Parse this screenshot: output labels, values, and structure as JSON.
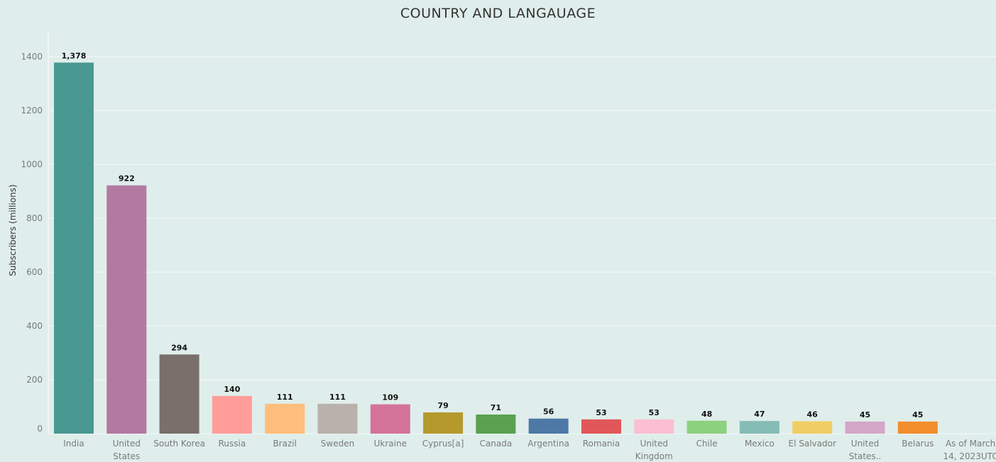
{
  "chart_data": {
    "type": "bar",
    "title": "COUNTRY  AND LANGAUAGE",
    "ylabel": "Subscribers (millions)",
    "xlabel": "",
    "ylim": [
      0,
      1400
    ],
    "yticks": [
      0,
      200,
      400,
      600,
      800,
      1000,
      1200,
      1400
    ],
    "grid": true,
    "categories": [
      "India",
      "United States",
      "South Korea",
      "Russia",
      "Brazil",
      "Sweden",
      "Ukraine",
      "Cyprus[a]",
      "Canada",
      "Argentina",
      "Romania",
      "United Kingdom",
      "Chile",
      "Mexico",
      "El Salvador",
      "United States..",
      "Belarus",
      "As of March 14, 2023UTC"
    ],
    "category_lines": [
      [
        "India"
      ],
      [
        "United",
        "States"
      ],
      [
        "South Korea"
      ],
      [
        "Russia"
      ],
      [
        "Brazil"
      ],
      [
        "Sweden"
      ],
      [
        "Ukraine"
      ],
      [
        "Cyprus[a]"
      ],
      [
        "Canada"
      ],
      [
        "Argentina"
      ],
      [
        "Romania"
      ],
      [
        "United",
        "Kingdom"
      ],
      [
        "Chile"
      ],
      [
        "Mexico"
      ],
      [
        "El Salvador"
      ],
      [
        "United",
        "States.."
      ],
      [
        "Belarus"
      ],
      [
        "As of March",
        "14, 2023UTC"
      ]
    ],
    "values": [
      1378,
      922,
      294,
      140,
      111,
      111,
      109,
      79,
      71,
      56,
      53,
      53,
      48,
      47,
      46,
      45,
      45,
      null
    ],
    "value_labels": [
      "1,378",
      "922",
      "294",
      "140",
      "111",
      "111",
      "109",
      "79",
      "71",
      "56",
      "53",
      "53",
      "48",
      "47",
      "46",
      "45",
      "45",
      ""
    ],
    "colors": [
      "#4a9892",
      "#b27aa1",
      "#7a6f6b",
      "#ff9d9a",
      "#ffbe7d",
      "#bab0ac",
      "#d4739a",
      "#b5992c",
      "#59a14f",
      "#4e79a7",
      "#e15759",
      "#fabfd2",
      "#8cd17d",
      "#86bcb6",
      "#f1ce63",
      "#d4a6c8",
      "#f28e2b",
      "#dfeeeb"
    ]
  }
}
